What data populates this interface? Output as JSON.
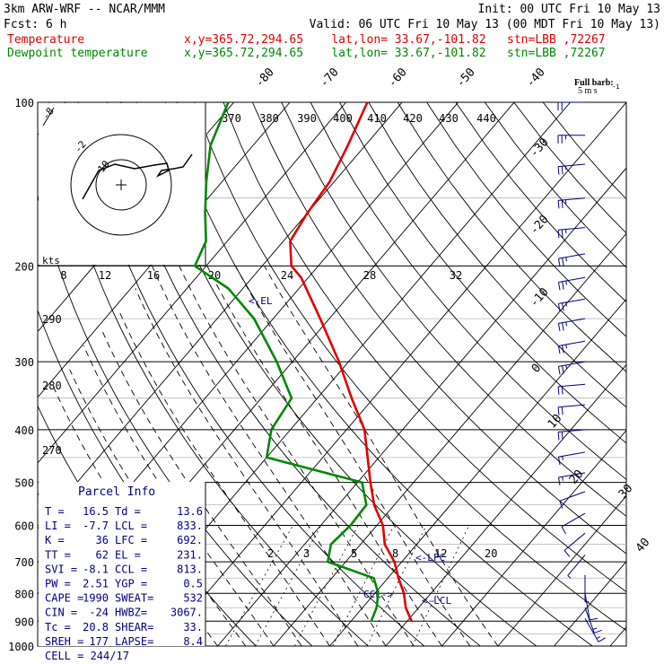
{
  "header": {
    "line1_left": "3km ARW-WRF -- NCAR/MMM",
    "line1_right": "Init: 00 UTC Fri 10 May 13",
    "line2_left": "Fcst:     6 h",
    "line2_right": "Valid: 06 UTC Fri 10 May 13 (00 MDT Fri 10 May 13)",
    "temp_label": "Temperature",
    "dew_label": "Dewpoint temperature",
    "temp_info": "x,y=365.72,294.65    lat,lon= 33.67,-101.82   stn=LBB ,72267",
    "dew_info": "x,y=365.72,294.65    lat,lon= 33.67,-101.82   stn=LBB ,72267"
  },
  "colors": {
    "temperature": "#e00000",
    "dewpoint": "#008800",
    "parcel_text": "#000080",
    "barbs": "#000080"
  },
  "chart_data": {
    "type": "line",
    "y_scale": "log-pressure",
    "pressure_ticks": [
      100,
      200,
      300,
      400,
      500,
      600,
      700,
      800,
      900,
      1000
    ],
    "pressure_labels": [
      "100",
      "200",
      "300",
      "400",
      "500",
      "600",
      "700",
      "800",
      "900",
      "1000"
    ],
    "isotherm_labels": [
      "-80",
      "-70",
      "-60",
      "-50",
      "-40",
      "-30",
      "-20",
      "-10",
      "0",
      "10",
      "20",
      "30",
      "40"
    ],
    "theta_labels": [
      "370",
      "380",
      "390",
      "400",
      "410",
      "420",
      "430",
      "440"
    ],
    "theta_e_labels": [
      "290",
      "280",
      "270"
    ],
    "mixing_ratio_labels": [
      "2",
      "3",
      "5",
      "8",
      "12",
      "20"
    ],
    "inset_axis_labels": [
      "8",
      "12",
      "16",
      "20",
      "24",
      "28",
      "32"
    ],
    "inset_units": "kts",
    "hodograph_labels": [
      "-8",
      "-2",
      "10"
    ],
    "barb_legend": [
      "Full barb:",
      "5 m s"
    ],
    "series": [
      {
        "name": "Temperature",
        "points": [
          [
            20.8,
            900
          ],
          [
            17.7,
            850
          ],
          [
            15.2,
            800
          ],
          [
            11.9,
            750
          ],
          [
            8.7,
            700
          ],
          [
            4.3,
            650
          ],
          [
            1.1,
            600
          ],
          [
            -3.6,
            550
          ],
          [
            -7.7,
            500
          ],
          [
            -12.0,
            450
          ],
          [
            -16.8,
            400
          ],
          [
            -23.9,
            350
          ],
          [
            -31.7,
            300
          ],
          [
            -41.6,
            250
          ],
          [
            -51.3,
            210
          ],
          [
            -54.8,
            200
          ],
          [
            -58.8,
            180
          ],
          [
            -60.0,
            160
          ],
          [
            -60.8,
            140
          ],
          [
            -63.1,
            120
          ],
          [
            -66.2,
            100
          ]
        ]
      },
      {
        "name": "Dewpoint temperature",
        "points": [
          [
            13.6,
            900
          ],
          [
            12.5,
            850
          ],
          [
            10.6,
            800
          ],
          [
            7.5,
            750
          ],
          [
            -3.2,
            700
          ],
          [
            -5.3,
            650
          ],
          [
            -4.7,
            600
          ],
          [
            -5.0,
            550
          ],
          [
            -9.2,
            500
          ],
          [
            -30.0,
            450
          ],
          [
            -33.4,
            400
          ],
          [
            -34.6,
            350
          ],
          [
            -42.8,
            300
          ],
          [
            -53.4,
            250
          ],
          [
            -62.6,
            220
          ],
          [
            -72.0,
            200
          ],
          [
            -73.8,
            180
          ],
          [
            -78.2,
            160
          ],
          [
            -82.8,
            140
          ],
          [
            -87.6,
            120
          ],
          [
            -91.0,
            100
          ]
        ]
      }
    ],
    "annotations": [
      "<-EL",
      "<-LFC",
      "<-LCL",
      "CCL->"
    ]
  },
  "parcel_info": {
    "title": "Parcel Info",
    "rows": [
      {
        "a": "T  =",
        "b": "16.5",
        "c": "Td =",
        "d": "13.6"
      },
      {
        "a": "LI =",
        "b": "-7.7",
        "c": "LCL =",
        "d": "833."
      },
      {
        "a": "K  =",
        "b": "36",
        "c": "LFC =",
        "d": "692."
      },
      {
        "a": "TT =",
        "b": "62",
        "c": "EL  =",
        "d": "231."
      },
      {
        "a": "SVI =",
        "b": "-8.1",
        "c": "CCL =",
        "d": "813."
      },
      {
        "a": "PW =",
        "b": "2.51",
        "c": "YGP =",
        "d": "0.5"
      },
      {
        "a": "CAPE =",
        "b": "1990",
        "c": "SWEAT=",
        "d": "532"
      },
      {
        "a": "CIN =",
        "b": "-24",
        "c": "HWBZ=",
        "d": "3067."
      },
      {
        "a": "Tc =",
        "b": "20.8",
        "c": "SHEAR=",
        "d": "33."
      },
      {
        "a": "SREH =",
        "b": "177",
        "c": "LAPSE=",
        "d": "8.4"
      }
    ],
    "cell": "CELL = 244/17"
  },
  "wind_barbs": [
    {
      "p": 100,
      "dir": 270,
      "spd": 20
    },
    {
      "p": 115,
      "dir": 270,
      "spd": 25
    },
    {
      "p": 130,
      "dir": 265,
      "spd": 25
    },
    {
      "p": 150,
      "dir": 265,
      "spd": 25
    },
    {
      "p": 170,
      "dir": 265,
      "spd": 25
    },
    {
      "p": 190,
      "dir": 260,
      "spd": 25
    },
    {
      "p": 210,
      "dir": 260,
      "spd": 25
    },
    {
      "p": 230,
      "dir": 260,
      "spd": 25
    },
    {
      "p": 250,
      "dir": 260,
      "spd": 25
    },
    {
      "p": 275,
      "dir": 260,
      "spd": 25
    },
    {
      "p": 300,
      "dir": 260,
      "spd": 25
    },
    {
      "p": 330,
      "dir": 265,
      "spd": 20
    },
    {
      "p": 360,
      "dir": 265,
      "spd": 20
    },
    {
      "p": 400,
      "dir": 265,
      "spd": 20
    },
    {
      "p": 440,
      "dir": 260,
      "spd": 15
    },
    {
      "p": 480,
      "dir": 260,
      "spd": 15
    },
    {
      "p": 520,
      "dir": 250,
      "spd": 10
    },
    {
      "p": 570,
      "dir": 240,
      "spd": 10
    },
    {
      "p": 620,
      "dir": 230,
      "spd": 10
    },
    {
      "p": 680,
      "dir": 220,
      "spd": 5
    },
    {
      "p": 740,
      "dir": 180,
      "spd": 5
    },
    {
      "p": 800,
      "dir": 170,
      "spd": 10
    },
    {
      "p": 850,
      "dir": 160,
      "spd": 15
    },
    {
      "p": 890,
      "dir": 150,
      "spd": 15
    }
  ]
}
